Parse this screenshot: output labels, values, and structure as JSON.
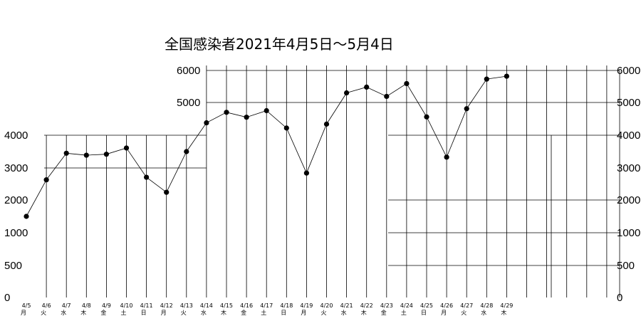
{
  "chart_data": {
    "type": "line",
    "title": "全国感染者2021年4月5日～5月4日",
    "yticks_left": [
      "0",
      "500",
      "1000",
      "2000",
      "3000",
      "4000",
      "5000",
      "6000"
    ],
    "yticks_right": [
      "0",
      "500",
      "1000",
      "2000",
      "3000",
      "4000",
      "5000",
      "6000"
    ],
    "categories": [
      "4/5",
      "4/6",
      "4/7",
      "4/8",
      "4/9",
      "4/10",
      "4/11",
      "4/12",
      "4/13",
      "4/14",
      "4/15",
      "4/16",
      "4/17",
      "4/18",
      "4/19",
      "4/20",
      "4/21",
      "4/22",
      "4/23",
      "4/24",
      "4/25",
      "4/26",
      "4/27",
      "4/28",
      "4/29"
    ],
    "weekdays": [
      "月",
      "火",
      "水",
      "木",
      "金",
      "土",
      "日",
      "月",
      "火",
      "水",
      "木",
      "金",
      "土",
      "日",
      "月",
      "火",
      "水",
      "木",
      "金",
      "土",
      "日",
      "月",
      "火",
      "水",
      "木"
    ],
    "series": [
      {
        "values": [
          1500,
          2630,
          3450,
          3390,
          3420,
          3610,
          2710,
          2240,
          3500,
          4380,
          4700,
          4550,
          4750,
          4220,
          2840,
          4340,
          5300,
          5480,
          5190,
          5590,
          4560,
          3330,
          4810,
          5730,
          5820
        ]
      }
    ],
    "grid": true
  }
}
